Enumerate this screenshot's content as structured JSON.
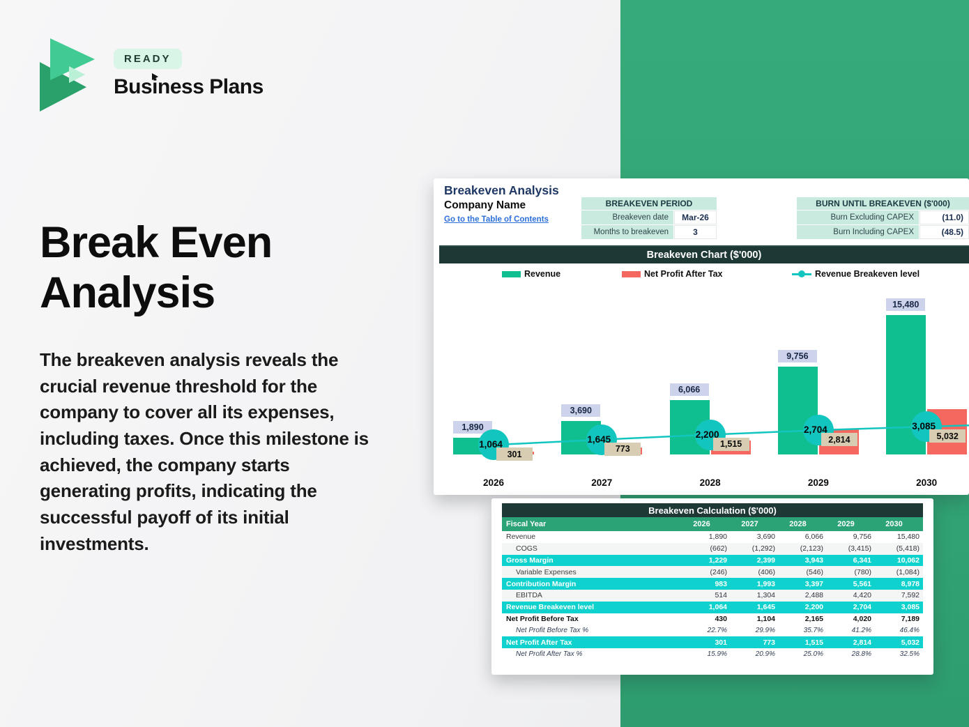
{
  "logo": {
    "badge": "READY",
    "brand": "Business Plans"
  },
  "hero": {
    "title": "Break Even Analysis",
    "paragraph": "The breakeven analysis reveals the crucial revenue threshold for the company to cover all its expenses, including taxes. Once this milestone is achieved, the company starts generating profits, indicating the successful payoff of its initial investments."
  },
  "sheet": {
    "title": "Breakeven Analysis",
    "company": "Company Name",
    "link": "Go to the Table of Contents",
    "period_table": {
      "header": "BREAKEVEN PERIOD",
      "rows": [
        {
          "label": "Breakeven date",
          "value": "Mar-26"
        },
        {
          "label": "Months to breakeven",
          "value": "3"
        }
      ]
    },
    "burn_table": {
      "header": "BURN UNTIL BREAKEVEN ($'000)",
      "rows": [
        {
          "label": "Burn Excluding CAPEX",
          "value": "(11.0)"
        },
        {
          "label": "Burn Including CAPEX",
          "value": "(48.5)"
        }
      ]
    },
    "chart_title": "Breakeven Chart ($'000)"
  },
  "chart_data": {
    "type": "bar",
    "title": "Breakeven Chart ($'000)",
    "categories": [
      "2026",
      "2027",
      "2028",
      "2029",
      "2030"
    ],
    "series": [
      {
        "name": "Revenue",
        "type": "bar",
        "color": "#10bf90",
        "values": [
          1890,
          3690,
          6066,
          9756,
          15480
        ],
        "labels": [
          "1,890",
          "3,690",
          "6,066",
          "9,756",
          "15,480"
        ]
      },
      {
        "name": "Net Profit After Tax",
        "type": "bar",
        "color": "#f4685f",
        "values": [
          301,
          773,
          1515,
          2814,
          5032
        ],
        "labels": [
          "301",
          "773",
          "1,515",
          "2,814",
          "5,032"
        ]
      },
      {
        "name": "Revenue Breakeven level",
        "type": "line",
        "color": "#13c5bf",
        "values": [
          1064,
          1645,
          2200,
          2704,
          3085
        ],
        "labels": [
          "1,064",
          "1,645",
          "2,200",
          "2,704",
          "3,085"
        ]
      }
    ],
    "legend_position": "top",
    "grid": false,
    "ylim": [
      0,
      16000
    ]
  },
  "calc_table": {
    "title": "Breakeven Calculation ($'000)",
    "year_header_label": "Fiscal Year",
    "years": [
      "2026",
      "2027",
      "2028",
      "2029",
      "2030"
    ],
    "rows": [
      {
        "label": "Revenue",
        "style": "plain",
        "indent": false,
        "values": [
          "1,890",
          "3,690",
          "6,066",
          "9,756",
          "15,480"
        ]
      },
      {
        "label": "COGS",
        "style": "plain",
        "indent": true,
        "values": [
          "(662)",
          "(1,292)",
          "(2,123)",
          "(3,415)",
          "(5,418)"
        ]
      },
      {
        "label": "Gross Margin",
        "style": "highlight",
        "indent": false,
        "values": [
          "1,229",
          "2,399",
          "3,943",
          "6,341",
          "10,062"
        ]
      },
      {
        "label": "Variable Expenses",
        "style": "plain",
        "indent": true,
        "values": [
          "(246)",
          "(406)",
          "(546)",
          "(780)",
          "(1,084)"
        ]
      },
      {
        "label": "Contribution Margin",
        "style": "highlight",
        "indent": false,
        "values": [
          "983",
          "1,993",
          "3,397",
          "5,561",
          "8,978"
        ]
      },
      {
        "label": "EBITDA",
        "style": "plain",
        "indent": true,
        "values": [
          "514",
          "1,304",
          "2,488",
          "4,420",
          "7,592"
        ]
      },
      {
        "label": "Revenue Breakeven level",
        "style": "highlight",
        "indent": false,
        "values": [
          "1,064",
          "1,645",
          "2,200",
          "2,704",
          "3,085"
        ]
      },
      {
        "label": "Net Profit Before Tax",
        "style": "bold",
        "indent": false,
        "values": [
          "430",
          "1,104",
          "2,165",
          "4,020",
          "7,189"
        ]
      },
      {
        "label": "Net Profit Before Tax %",
        "style": "italic",
        "indent": true,
        "values": [
          "22.7%",
          "29.9%",
          "35.7%",
          "41.2%",
          "46.4%"
        ]
      },
      {
        "label": "Net Profit After Tax",
        "style": "highlight",
        "indent": false,
        "values": [
          "301",
          "773",
          "1,515",
          "2,814",
          "5,032"
        ]
      },
      {
        "label": "Net Profit After Tax %",
        "style": "italic",
        "indent": true,
        "values": [
          "15.9%",
          "20.9%",
          "25.0%",
          "28.8%",
          "32.5%"
        ]
      }
    ]
  },
  "colors": {
    "panel_green": "#34a876",
    "bar_green": "#10bf90",
    "npat_red": "#f4685f",
    "breakeven_teal": "#13c5bf",
    "highlight_cyan": "#0fd2cf",
    "table_green": "#2ba377",
    "header_dark": "#1e3836",
    "mint": "#c8eadf",
    "revenue_label_bg": "#ccd3ea",
    "npat_label_bg": "#d8cdb2",
    "link_blue": "#2b6fd9"
  }
}
